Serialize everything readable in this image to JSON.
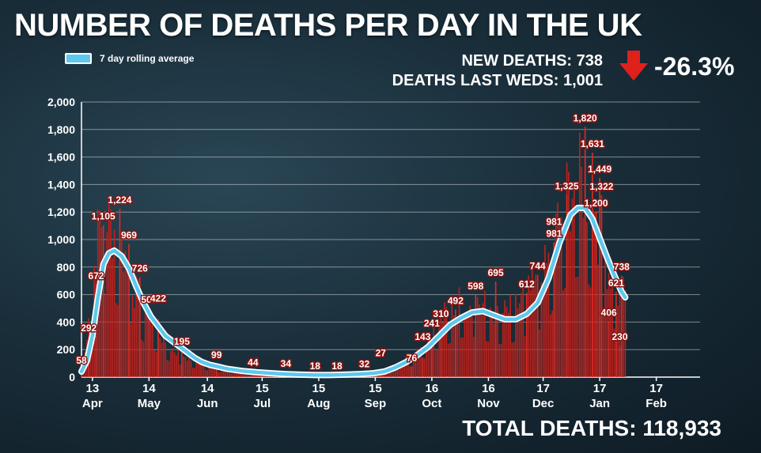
{
  "header": {
    "title": "NUMBER OF DEATHS PER DAY IN THE UK",
    "legend_label": "7 day rolling average"
  },
  "stats": {
    "new_deaths": "NEW DEATHS: 738",
    "deaths_last_weds": "DEATHS LAST WEDS: 1,001",
    "change": "-26.3%",
    "total": "TOTAL DEATHS: 118,933"
  },
  "colors": {
    "bars": "#c0201b",
    "line": "#5ec8ee",
    "line_outline": "#ffffff",
    "arrow": "#e0201b"
  },
  "chart_data": {
    "type": "bar",
    "title": "NUMBER OF DEATHS PER DAY IN THE UK",
    "xlabel": "",
    "ylabel": "",
    "ylim": [
      0,
      2000
    ],
    "yticks": [
      0,
      200,
      400,
      600,
      800,
      1000,
      1200,
      1400,
      1600,
      1800,
      2000
    ],
    "ytick_labels": [
      "0",
      "200",
      "400",
      "600",
      "800",
      "1,000",
      "1,200",
      "1,400",
      "1,600",
      "1,800",
      "2,000"
    ],
    "grid": true,
    "xlim_days": [
      0,
      339
    ],
    "x_ticks": [
      {
        "day": 6,
        "day_label": "13",
        "month_label": "Apr"
      },
      {
        "day": 37,
        "day_label": "14",
        "month_label": "May"
      },
      {
        "day": 69,
        "day_label": "14",
        "month_label": "Jun"
      },
      {
        "day": 99,
        "day_label": "15",
        "month_label": "Jul"
      },
      {
        "day": 130,
        "day_label": "15",
        "month_label": "Aug"
      },
      {
        "day": 161,
        "day_label": "15",
        "month_label": "Sep"
      },
      {
        "day": 192,
        "day_label": "16",
        "month_label": "Oct"
      },
      {
        "day": 223,
        "day_label": "16",
        "month_label": "Nov"
      },
      {
        "day": 253,
        "day_label": "17",
        "month_label": "Dec"
      },
      {
        "day": 284,
        "day_label": "17",
        "month_label": "Jan"
      },
      {
        "day": 315,
        "day_label": "17",
        "month_label": "Feb"
      }
    ],
    "daily_profile": [
      [
        0,
        55
      ],
      [
        3,
        290
      ],
      [
        6,
        650
      ],
      [
        10,
        1050
      ],
      [
        14,
        1100
      ],
      [
        18,
        1000
      ],
      [
        22,
        900
      ],
      [
        26,
        760
      ],
      [
        30,
        560
      ],
      [
        34,
        470
      ],
      [
        38,
        390
      ],
      [
        42,
        320
      ],
      [
        46,
        240
      ],
      [
        50,
        190
      ],
      [
        56,
        150
      ],
      [
        62,
        120
      ],
      [
        68,
        95
      ],
      [
        75,
        65
      ],
      [
        82,
        48
      ],
      [
        90,
        38
      ],
      [
        98,
        30
      ],
      [
        106,
        25
      ],
      [
        114,
        20
      ],
      [
        122,
        18
      ],
      [
        130,
        18
      ],
      [
        138,
        20
      ],
      [
        146,
        25
      ],
      [
        154,
        28
      ],
      [
        162,
        40
      ],
      [
        170,
        70
      ],
      [
        178,
        120
      ],
      [
        184,
        180
      ],
      [
        190,
        280
      ],
      [
        196,
        380
      ],
      [
        202,
        450
      ],
      [
        208,
        520
      ],
      [
        214,
        540
      ],
      [
        220,
        490
      ],
      [
        226,
        450
      ],
      [
        232,
        430
      ],
      [
        238,
        470
      ],
      [
        244,
        560
      ],
      [
        250,
        600
      ],
      [
        256,
        780
      ],
      [
        262,
        1080
      ],
      [
        268,
        1280
      ],
      [
        272,
        1330
      ],
      [
        276,
        1300
      ],
      [
        280,
        1150
      ],
      [
        284,
        960
      ],
      [
        288,
        780
      ],
      [
        291,
        680
      ],
      [
        294,
        560
      ],
      [
        297,
        560
      ],
      [
        298,
        560
      ]
    ],
    "rolling_average": [
      [
        0,
        40
      ],
      [
        3,
        120
      ],
      [
        6,
        300
      ],
      [
        9,
        580
      ],
      [
        12,
        820
      ],
      [
        15,
        900
      ],
      [
        18,
        920
      ],
      [
        22,
        880
      ],
      [
        26,
        790
      ],
      [
        30,
        660
      ],
      [
        34,
        540
      ],
      [
        38,
        440
      ],
      [
        42,
        370
      ],
      [
        46,
        300
      ],
      [
        50,
        260
      ],
      [
        54,
        220
      ],
      [
        58,
        180
      ],
      [
        62,
        140
      ],
      [
        66,
        110
      ],
      [
        70,
        90
      ],
      [
        75,
        75
      ],
      [
        80,
        60
      ],
      [
        88,
        45
      ],
      [
        96,
        35
      ],
      [
        104,
        28
      ],
      [
        112,
        22
      ],
      [
        120,
        18
      ],
      [
        128,
        15
      ],
      [
        136,
        15
      ],
      [
        144,
        18
      ],
      [
        152,
        22
      ],
      [
        160,
        28
      ],
      [
        166,
        40
      ],
      [
        172,
        70
      ],
      [
        178,
        110
      ],
      [
        184,
        160
      ],
      [
        190,
        220
      ],
      [
        196,
        300
      ],
      [
        202,
        380
      ],
      [
        208,
        430
      ],
      [
        214,
        470
      ],
      [
        220,
        480
      ],
      [
        226,
        450
      ],
      [
        232,
        420
      ],
      [
        238,
        420
      ],
      [
        244,
        460
      ],
      [
        250,
        540
      ],
      [
        256,
        720
      ],
      [
        262,
        980
      ],
      [
        268,
        1180
      ],
      [
        272,
        1230
      ],
      [
        276,
        1230
      ],
      [
        280,
        1150
      ],
      [
        284,
        1010
      ],
      [
        288,
        870
      ],
      [
        292,
        740
      ],
      [
        296,
        620
      ],
      [
        298,
        580
      ]
    ],
    "annotations": [
      {
        "label": "58",
        "day": 0,
        "value": 58
      },
      {
        "label": "292",
        "day": 4,
        "value": 292
      },
      {
        "label": "672",
        "day": 8,
        "value": 672
      },
      {
        "label": "1,105",
        "day": 12,
        "value": 1105
      },
      {
        "label": "1,224",
        "day": 21,
        "value": 1224
      },
      {
        "label": "969",
        "day": 26,
        "value": 969
      },
      {
        "label": "726",
        "day": 32,
        "value": 726
      },
      {
        "label": "500",
        "day": 37,
        "value": 500
      },
      {
        "label": "422",
        "day": 42,
        "value": 422
      },
      {
        "label": "195",
        "day": 55,
        "value": 195
      },
      {
        "label": "99",
        "day": 74,
        "value": 99
      },
      {
        "label": "44",
        "day": 94,
        "value": 44
      },
      {
        "label": "34",
        "day": 112,
        "value": 34
      },
      {
        "label": "18",
        "day": 128,
        "value": 18
      },
      {
        "label": "18",
        "day": 140,
        "value": 18
      },
      {
        "label": "32",
        "day": 155,
        "value": 32
      },
      {
        "label": "27",
        "day": 164,
        "value": 27
      },
      {
        "label": "76",
        "day": 181,
        "value": 76
      },
      {
        "label": "143",
        "day": 187,
        "value": 143
      },
      {
        "label": "241",
        "day": 192,
        "value": 241
      },
      {
        "label": "310",
        "day": 197,
        "value": 310
      },
      {
        "label": "492",
        "day": 205,
        "value": 492
      },
      {
        "label": "598",
        "day": 216,
        "value": 598
      },
      {
        "label": "695",
        "day": 227,
        "value": 695
      },
      {
        "label": "612",
        "day": 244,
        "value": 612
      },
      {
        "label": "744",
        "day": 250,
        "value": 744
      },
      {
        "label": "981",
        "day": 259,
        "value": 981
      },
      {
        "label": "1,325",
        "day": 266,
        "value": 1325
      },
      {
        "label": "1,820",
        "day": 276,
        "value": 1820
      },
      {
        "label": "1,631",
        "day": 280,
        "value": 1631
      },
      {
        "label": "1,449",
        "day": 284,
        "value": 1449
      },
      {
        "label": "1,322",
        "day": 285,
        "value": 1322
      },
      {
        "label": "1,200",
        "day": 282,
        "value": 1200
      },
      {
        "label": "981",
        "day": 259,
        "value": 981
      },
      {
        "label": "738",
        "day": 296,
        "value": 738
      },
      {
        "label": "621",
        "day": 293,
        "value": 621
      },
      {
        "label": "406",
        "day": 289,
        "value": 406
      },
      {
        "label": "230",
        "day": 295,
        "value": 230
      }
    ]
  }
}
